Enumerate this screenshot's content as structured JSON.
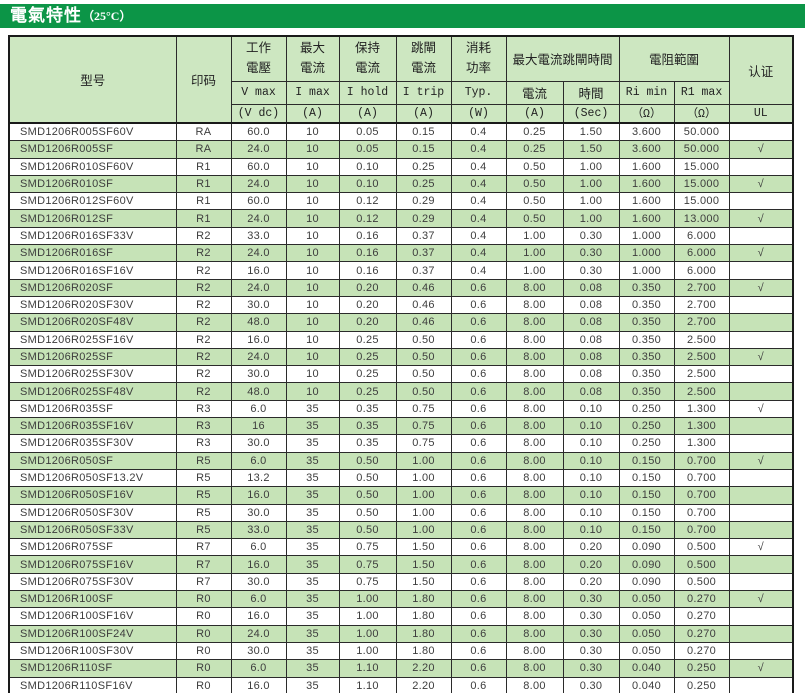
{
  "colors": {
    "title_bar_green": "#0C9547",
    "header_green": "#CDE7C1",
    "row_green": "#C6E3B7"
  },
  "title": {
    "main": "電氣特性",
    "temp": "（25°C）"
  },
  "table": {
    "header": {
      "model": "型号",
      "marking": "印码",
      "groups": [
        {
          "zh": "工作\n電壓",
          "sym": "V max",
          "unit": "(V dc)"
        },
        {
          "zh": "最大\n電流",
          "sym": "I max",
          "unit": "(A)"
        },
        {
          "zh": "保持\n電流",
          "sym": "I hold",
          "unit": "(A)"
        },
        {
          "zh": "跳閘\n電流",
          "sym": "I trip",
          "unit": "(A)"
        },
        {
          "zh": "消耗\n功率",
          "sym": "Typ.",
          "unit": "(W)"
        }
      ],
      "trip_time": {
        "label": "最大電流跳閘時間",
        "cols": [
          {
            "sym": "電流",
            "unit": "(A)"
          },
          {
            "sym": "時間",
            "unit": "(Sec)"
          }
        ]
      },
      "resistance": {
        "label": "電阻範圍",
        "cols": [
          {
            "sym": "Ri min",
            "unit": "（Ω）"
          },
          {
            "sym": "R1 max",
            "unit": "（Ω）"
          }
        ]
      },
      "cert": {
        "label": "认证",
        "unit": "UL"
      }
    },
    "check_glyph": "√",
    "rows": [
      [
        "SMD1206R005SF60V",
        "RA",
        "60.0",
        "10",
        "0.05",
        "0.15",
        "0.4",
        "0.25",
        "1.50",
        "3.600",
        "50.000",
        ""
      ],
      [
        "SMD1206R005SF",
        "RA",
        "24.0",
        "10",
        "0.05",
        "0.15",
        "0.4",
        "0.25",
        "1.50",
        "3.600",
        "50.000",
        "√"
      ],
      [
        "SMD1206R010SF60V",
        "R1",
        "60.0",
        "10",
        "0.10",
        "0.25",
        "0.4",
        "0.50",
        "1.00",
        "1.600",
        "15.000",
        ""
      ],
      [
        "SMD1206R010SF",
        "R1",
        "24.0",
        "10",
        "0.10",
        "0.25",
        "0.4",
        "0.50",
        "1.00",
        "1.600",
        "15.000",
        "√"
      ],
      [
        "SMD1206R012SF60V",
        "R1",
        "60.0",
        "10",
        "0.12",
        "0.29",
        "0.4",
        "0.50",
        "1.00",
        "1.600",
        "15.000",
        ""
      ],
      [
        "SMD1206R012SF",
        "R1",
        "24.0",
        "10",
        "0.12",
        "0.29",
        "0.4",
        "0.50",
        "1.00",
        "1.600",
        "13.000",
        "√"
      ],
      [
        "SMD1206R016SF33V",
        "R2",
        "33.0",
        "10",
        "0.16",
        "0.37",
        "0.4",
        "1.00",
        "0.30",
        "1.000",
        "6.000",
        ""
      ],
      [
        "SMD1206R016SF",
        "R2",
        "24.0",
        "10",
        "0.16",
        "0.37",
        "0.4",
        "1.00",
        "0.30",
        "1.000",
        "6.000",
        "√"
      ],
      [
        "SMD1206R016SF16V",
        "R2",
        "16.0",
        "10",
        "0.16",
        "0.37",
        "0.4",
        "1.00",
        "0.30",
        "1.000",
        "6.000",
        ""
      ],
      [
        "SMD1206R020SF",
        "R2",
        "24.0",
        "10",
        "0.20",
        "0.46",
        "0.6",
        "8.00",
        "0.08",
        "0.350",
        "2.700",
        "√"
      ],
      [
        "SMD1206R020SF30V",
        "R2",
        "30.0",
        "10",
        "0.20",
        "0.46",
        "0.6",
        "8.00",
        "0.08",
        "0.350",
        "2.700",
        ""
      ],
      [
        "SMD1206R020SF48V",
        "R2",
        "48.0",
        "10",
        "0.20",
        "0.46",
        "0.6",
        "8.00",
        "0.08",
        "0.350",
        "2.700",
        ""
      ],
      [
        "SMD1206R025SF16V",
        "R2",
        "16.0",
        "10",
        "0.25",
        "0.50",
        "0.6",
        "8.00",
        "0.08",
        "0.350",
        "2.500",
        ""
      ],
      [
        "SMD1206R025SF",
        "R2",
        "24.0",
        "10",
        "0.25",
        "0.50",
        "0.6",
        "8.00",
        "0.08",
        "0.350",
        "2.500",
        "√"
      ],
      [
        "SMD1206R025SF30V",
        "R2",
        "30.0",
        "10",
        "0.25",
        "0.50",
        "0.6",
        "8.00",
        "0.08",
        "0.350",
        "2.500",
        ""
      ],
      [
        "SMD1206R025SF48V",
        "R2",
        "48.0",
        "10",
        "0.25",
        "0.50",
        "0.6",
        "8.00",
        "0.08",
        "0.350",
        "2.500",
        ""
      ],
      [
        "SMD1206R035SF",
        "R3",
        "6.0",
        "35",
        "0.35",
        "0.75",
        "0.6",
        "8.00",
        "0.10",
        "0.250",
        "1.300",
        "√"
      ],
      [
        "SMD1206R035SF16V",
        "R3",
        "16",
        "35",
        "0.35",
        "0.75",
        "0.6",
        "8.00",
        "0.10",
        "0.250",
        "1.300",
        ""
      ],
      [
        "SMD1206R035SF30V",
        "R3",
        "30.0",
        "35",
        "0.35",
        "0.75",
        "0.6",
        "8.00",
        "0.10",
        "0.250",
        "1.300",
        ""
      ],
      [
        "SMD1206R050SF",
        "R5",
        "6.0",
        "35",
        "0.50",
        "1.00",
        "0.6",
        "8.00",
        "0.10",
        "0.150",
        "0.700",
        "√"
      ],
      [
        "SMD1206R050SF13.2V",
        "R5",
        "13.2",
        "35",
        "0.50",
        "1.00",
        "0.6",
        "8.00",
        "0.10",
        "0.150",
        "0.700",
        ""
      ],
      [
        "SMD1206R050SF16V",
        "R5",
        "16.0",
        "35",
        "0.50",
        "1.00",
        "0.6",
        "8.00",
        "0.10",
        "0.150",
        "0.700",
        ""
      ],
      [
        "SMD1206R050SF30V",
        "R5",
        "30.0",
        "35",
        "0.50",
        "1.00",
        "0.6",
        "8.00",
        "0.10",
        "0.150",
        "0.700",
        ""
      ],
      [
        "SMD1206R050SF33V",
        "R5",
        "33.0",
        "35",
        "0.50",
        "1.00",
        "0.6",
        "8.00",
        "0.10",
        "0.150",
        "0.700",
        ""
      ],
      [
        "SMD1206R075SF",
        "R7",
        "6.0",
        "35",
        "0.75",
        "1.50",
        "0.6",
        "8.00",
        "0.20",
        "0.090",
        "0.500",
        "√"
      ],
      [
        "SMD1206R075SF16V",
        "R7",
        "16.0",
        "35",
        "0.75",
        "1.50",
        "0.6",
        "8.00",
        "0.20",
        "0.090",
        "0.500",
        ""
      ],
      [
        "SMD1206R075SF30V",
        "R7",
        "30.0",
        "35",
        "0.75",
        "1.50",
        "0.6",
        "8.00",
        "0.20",
        "0.090",
        "0.500",
        ""
      ],
      [
        "SMD1206R100SF",
        "R0",
        "6.0",
        "35",
        "1.00",
        "1.80",
        "0.6",
        "8.00",
        "0.30",
        "0.050",
        "0.270",
        "√"
      ],
      [
        "SMD1206R100SF16V",
        "R0",
        "16.0",
        "35",
        "1.00",
        "1.80",
        "0.6",
        "8.00",
        "0.30",
        "0.050",
        "0.270",
        ""
      ],
      [
        "SMD1206R100SF24V",
        "R0",
        "24.0",
        "35",
        "1.00",
        "1.80",
        "0.6",
        "8.00",
        "0.30",
        "0.050",
        "0.270",
        ""
      ],
      [
        "SMD1206R100SF30V",
        "R0",
        "30.0",
        "35",
        "1.00",
        "1.80",
        "0.6",
        "8.00",
        "0.30",
        "0.050",
        "0.270",
        ""
      ],
      [
        "SMD1206R110SF",
        "R0",
        "6.0",
        "35",
        "1.10",
        "2.20",
        "0.6",
        "8.00",
        "0.30",
        "0.040",
        "0.250",
        "√"
      ],
      [
        "SMD1206R110SF16V",
        "R0",
        "16.0",
        "35",
        "1.10",
        "2.20",
        "0.6",
        "8.00",
        "0.30",
        "0.040",
        "0.250",
        ""
      ]
    ]
  }
}
